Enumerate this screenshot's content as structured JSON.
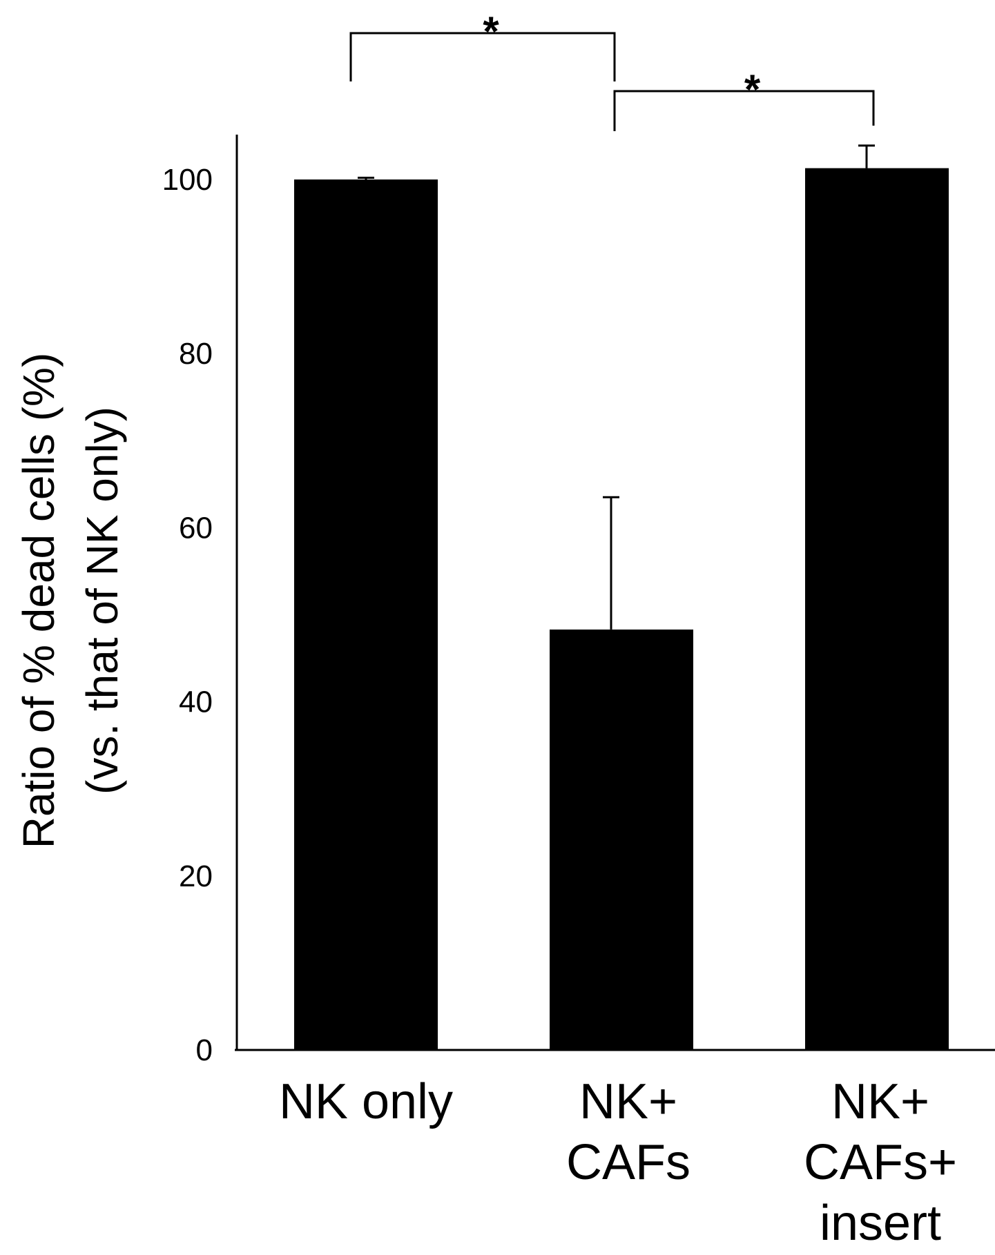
{
  "chart_data": {
    "type": "bar",
    "categories": [
      [
        "NK only"
      ],
      [
        "NK+",
        "CAFs"
      ],
      [
        "NK+",
        "CAFs+",
        "insert"
      ]
    ],
    "values": [
      100,
      48.3,
      101.3
    ],
    "error": [
      0.2,
      15.2,
      2.6
    ],
    "title": "",
    "xlabel": "",
    "ylabel": [
      "Ratio of % dead cells (%)",
      "(vs. that of NK only)"
    ],
    "ylim": [
      0,
      105
    ],
    "yticks": [
      0,
      20,
      40,
      60,
      80,
      100
    ],
    "grid": false,
    "bar_color": "#000000",
    "significance": [
      {
        "from": 0,
        "to": 1,
        "label": "*"
      },
      {
        "from": 1,
        "to": 2,
        "label": "*"
      }
    ]
  }
}
